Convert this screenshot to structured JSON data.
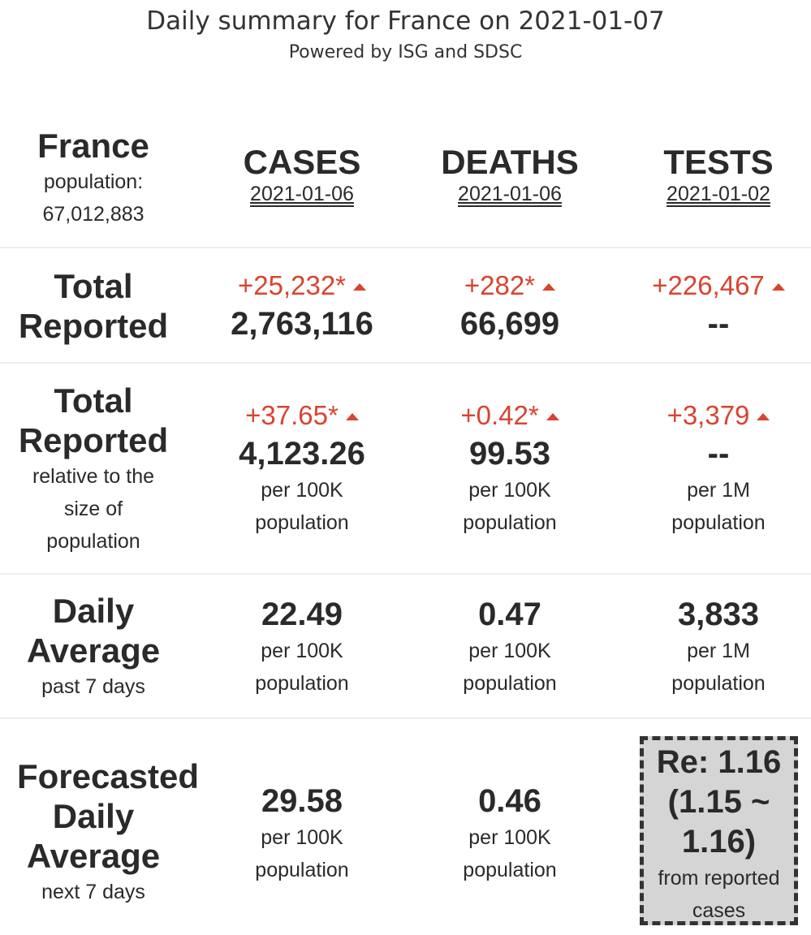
{
  "header": {
    "title": "Daily summary for France on 2021-01-07",
    "subtitle": "Powered by ISG and SDSC"
  },
  "country": {
    "name": "France",
    "population_label": "population:",
    "population_value": "67,012,883"
  },
  "columns": [
    {
      "title": "CASES",
      "date": "2021-01-06"
    },
    {
      "title": "DEATHS",
      "date": "2021-01-06"
    },
    {
      "title": "TESTS",
      "date": "2021-01-02"
    }
  ],
  "rows": {
    "total": {
      "label1": "Total",
      "label2": "Reported",
      "cells": [
        {
          "change": "+25,232*",
          "value": "2,763,116"
        },
        {
          "change": "+282*",
          "value": "66,699"
        },
        {
          "change": "+226,467",
          "value": "--"
        }
      ]
    },
    "relative": {
      "label1": "Total",
      "label2": "Reported",
      "sub1": "relative to the",
      "sub2": "size of",
      "sub3": "population",
      "cells": [
        {
          "change": "+37.65*",
          "value": "4,123.26",
          "unit1": "per 100K",
          "unit2": "population"
        },
        {
          "change": "+0.42*",
          "value": "99.53",
          "unit1": "per 100K",
          "unit2": "population"
        },
        {
          "change": "+3,379",
          "value": "--",
          "unit1": "per 1M",
          "unit2": "population"
        }
      ]
    },
    "daily": {
      "label1": "Daily",
      "label2": "Average",
      "sub": "past 7 days",
      "cells": [
        {
          "value": "22.49",
          "unit1": "per 100K",
          "unit2": "population"
        },
        {
          "value": "0.47",
          "unit1": "per 100K",
          "unit2": "population"
        },
        {
          "value": "3,833",
          "unit1": "per 1M",
          "unit2": "population"
        }
      ]
    },
    "forecast": {
      "label1": "Forecasted",
      "label2": "Daily",
      "label3": "Average",
      "sub": "next 7 days",
      "cells": [
        {
          "value": "29.58",
          "unit1": "per 100K",
          "unit2": "population"
        },
        {
          "value": "0.46",
          "unit1": "per 100K",
          "unit2": "population"
        }
      ],
      "re": {
        "line1": "Re: 1.16",
        "line2": "(1.15 ~",
        "line3": "1.16)",
        "sub1": "from reported",
        "sub2": "cases"
      }
    }
  },
  "colors": {
    "increase": "#d9432f",
    "text": "#2a2a2a",
    "re_box_bg": "#d5d5d5"
  }
}
